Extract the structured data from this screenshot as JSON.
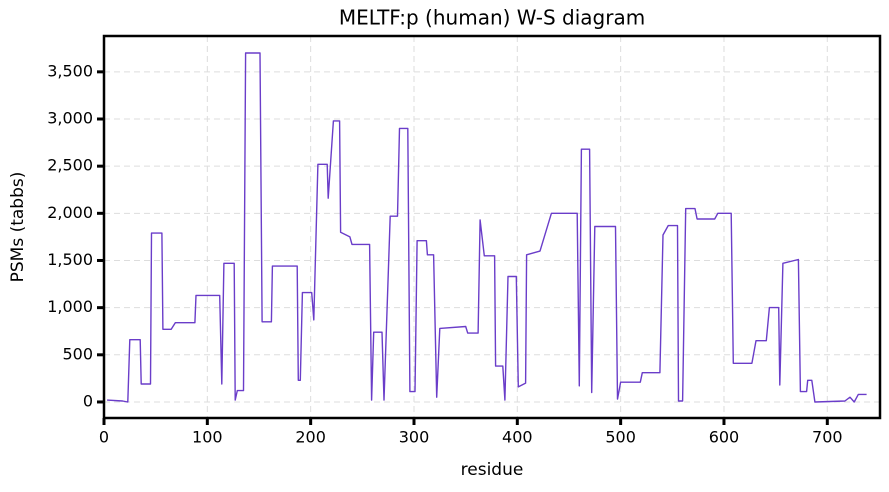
{
  "chart_data": {
    "type": "line",
    "title": "MELTF:p (human) W-S diagram",
    "x_label": "residue",
    "y_label": "PSMs (tabbs)",
    "xlim": [
      0,
      751
    ],
    "ylim": [
      -170,
      3880
    ],
    "xticks": [
      0,
      100,
      200,
      300,
      400,
      500,
      600,
      700
    ],
    "yticks": [
      0,
      500,
      {
        "value": 1000,
        "label": "1,000"
      },
      {
        "value": 1500,
        "label": "1,500"
      },
      {
        "value": 2000,
        "label": "2,000"
      },
      {
        "value": 2500,
        "label": "2,500"
      },
      {
        "value": 3000,
        "label": "3,000"
      },
      {
        "value": 3500,
        "label": "3,500"
      }
    ],
    "grid": true,
    "x": [
      3,
      18,
      23,
      25,
      35,
      36,
      45,
      46,
      56,
      57,
      65,
      69,
      88,
      89,
      112,
      114,
      116,
      126,
      127,
      129,
      135,
      137,
      151,
      153,
      162,
      163,
      187,
      188,
      190,
      192,
      201,
      203,
      207,
      216,
      217,
      222,
      228,
      229,
      238,
      240,
      257,
      259,
      261,
      269,
      271,
      277,
      284,
      286,
      294,
      296,
      301,
      303,
      312,
      313,
      319,
      322,
      325,
      350,
      352,
      362,
      364,
      368,
      378,
      379,
      386,
      388,
      391,
      399,
      401,
      408,
      409,
      422,
      433,
      458,
      460,
      462,
      470,
      472,
      475,
      495,
      497,
      500,
      519,
      521,
      538,
      541,
      546,
      555,
      556,
      560,
      563,
      572,
      574,
      591,
      594,
      607,
      609,
      627,
      631,
      641,
      644,
      653,
      654,
      657,
      672,
      674,
      680,
      681,
      685,
      688,
      717,
      722,
      726,
      730,
      738
    ],
    "series": [
      {
        "name": "PSMs",
        "color": "#6a3dc9",
        "values": [
          20,
          10,
          0,
          660,
          660,
          190,
          190,
          1790,
          1790,
          770,
          770,
          840,
          840,
          1130,
          1130,
          190,
          1470,
          1470,
          20,
          120,
          120,
          3700,
          3700,
          850,
          850,
          1440,
          1440,
          230,
          230,
          1160,
          1160,
          870,
          2520,
          2520,
          2160,
          2980,
          2980,
          1800,
          1750,
          1670,
          1670,
          20,
          740,
          740,
          20,
          1970,
          1970,
          2900,
          2900,
          110,
          110,
          1710,
          1710,
          1560,
          1560,
          50,
          780,
          800,
          730,
          730,
          1930,
          1550,
          1550,
          380,
          380,
          20,
          1330,
          1330,
          160,
          200,
          1560,
          1600,
          2000,
          2000,
          170,
          2680,
          2680,
          100,
          1860,
          1860,
          30,
          210,
          210,
          310,
          310,
          1770,
          1870,
          1870,
          10,
          10,
          2050,
          2050,
          1940,
          1940,
          2000,
          2000,
          410,
          410,
          650,
          650,
          1000,
          1000,
          180,
          1470,
          1510,
          110,
          110,
          230,
          230,
          0,
          10,
          50,
          0,
          80,
          80
        ]
      }
    ]
  }
}
